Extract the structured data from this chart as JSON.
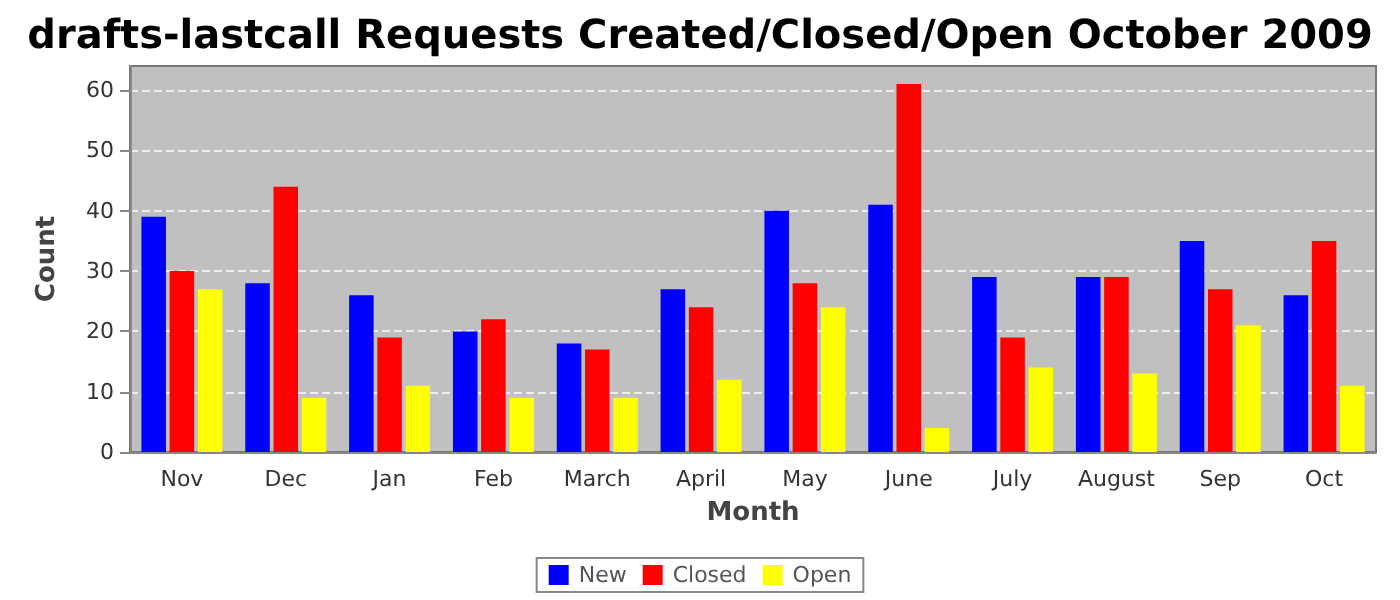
{
  "chart_data": {
    "type": "bar",
    "title": "drafts-lastcall Requests Created/Closed/Open October 2009",
    "xlabel": "Month",
    "ylabel": "Count",
    "categories": [
      "Nov",
      "Dec",
      "Jan",
      "Feb",
      "March",
      "April",
      "May",
      "June",
      "July",
      "August",
      "Sep",
      "Oct"
    ],
    "series": [
      {
        "name": "New",
        "color": "#0000ff",
        "values": [
          39,
          28,
          26,
          20,
          18,
          27,
          40,
          41,
          29,
          29,
          35,
          26
        ]
      },
      {
        "name": "Closed",
        "color": "#ff0000",
        "values": [
          30,
          44,
          19,
          22,
          17,
          24,
          28,
          61,
          19,
          29,
          27,
          35
        ]
      },
      {
        "name": "Open",
        "color": "#ffff00",
        "values": [
          27,
          9,
          11,
          9,
          9,
          12,
          24,
          4,
          14,
          13,
          21,
          11
        ]
      }
    ],
    "ylim": [
      0,
      64
    ],
    "yticks": [
      0,
      10,
      20,
      30,
      40,
      50,
      60
    ],
    "grid": "y",
    "legend": "bottom"
  }
}
